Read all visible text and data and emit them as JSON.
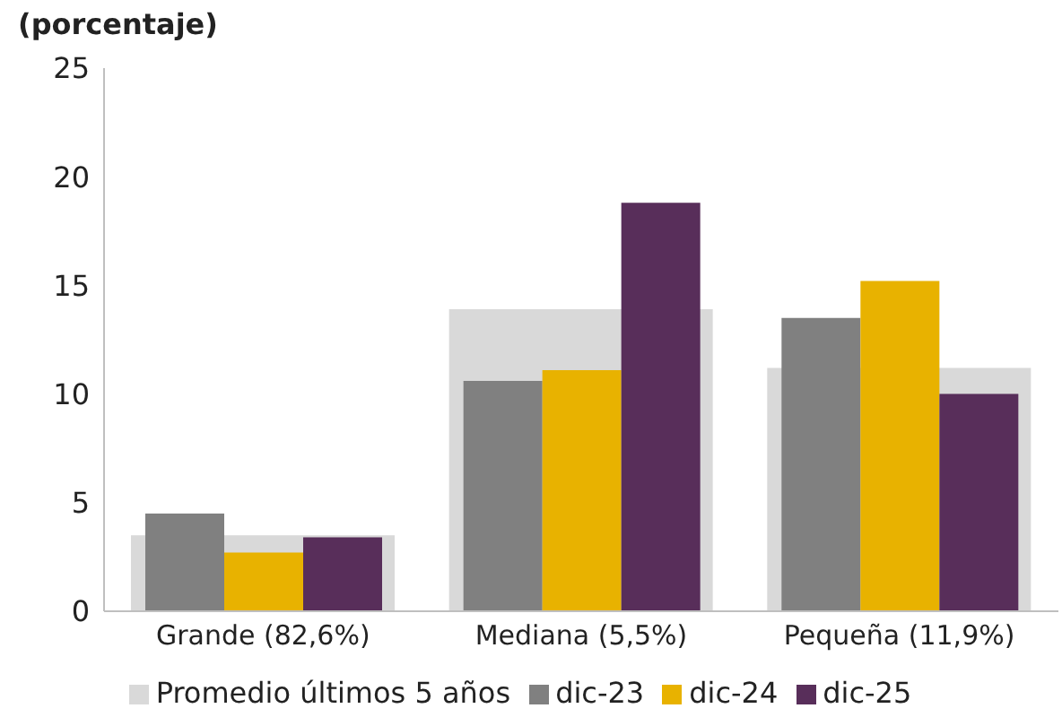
{
  "chart_data": {
    "type": "bar",
    "ylabel": "(porcentaje)",
    "categories": [
      "Grande (82,6%)",
      "Mediana (5,5%)",
      "Pequeña (11,9%)"
    ],
    "series": [
      {
        "name": "Promedio últimos 5 años",
        "color": "#d9d9d9",
        "values": [
          3.5,
          13.9,
          11.2
        ]
      },
      {
        "name": "dic-23",
        "color": "#808080",
        "values": [
          4.5,
          10.6,
          13.5
        ]
      },
      {
        "name": "dic-24",
        "color": "#e8b200",
        "values": [
          2.7,
          11.1,
          15.2
        ]
      },
      {
        "name": "dic-25",
        "color": "#582e5a",
        "values": [
          3.4,
          18.8,
          10.0
        ]
      }
    ],
    "ylim": [
      0,
      25
    ],
    "yticks": [
      0,
      5,
      10,
      15,
      20,
      25
    ],
    "grid": false,
    "legend": "bottom"
  }
}
